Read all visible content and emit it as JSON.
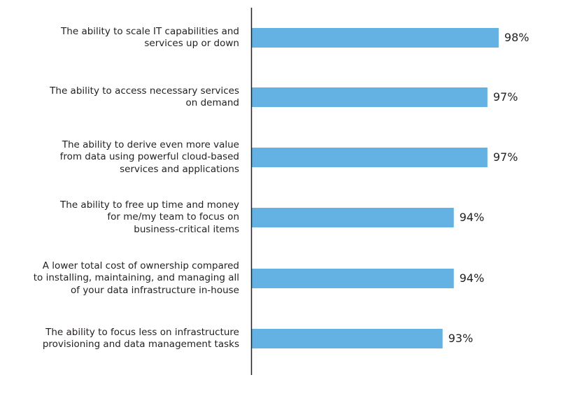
{
  "chart_data": {
    "type": "bar",
    "orientation": "horizontal",
    "categories": [
      "The ability to scale IT capabilities and\nservices up or down",
      "The ability to access necessary services\non demand",
      "The ability to derive even more value\nfrom data using powerful cloud-based\nservices and applications",
      "The ability to free up time and money\nfor me/my team to focus on\nbusiness-critical items",
      "A lower total cost of ownership compared\nto  installing, maintaining, and managing all\nof your data infrastructure in-house",
      "The ability to focus less on infrastructure\nprovisioning and data management tasks"
    ],
    "values": [
      98,
      97,
      97,
      94,
      94,
      93
    ],
    "value_labels": [
      "98%",
      "97%",
      "97%",
      "94%",
      "94%",
      "93%"
    ],
    "xlim": [
      76,
      100
    ],
    "grid": false,
    "bar_color": "#63b2e3",
    "axis_color": "#231f20"
  }
}
